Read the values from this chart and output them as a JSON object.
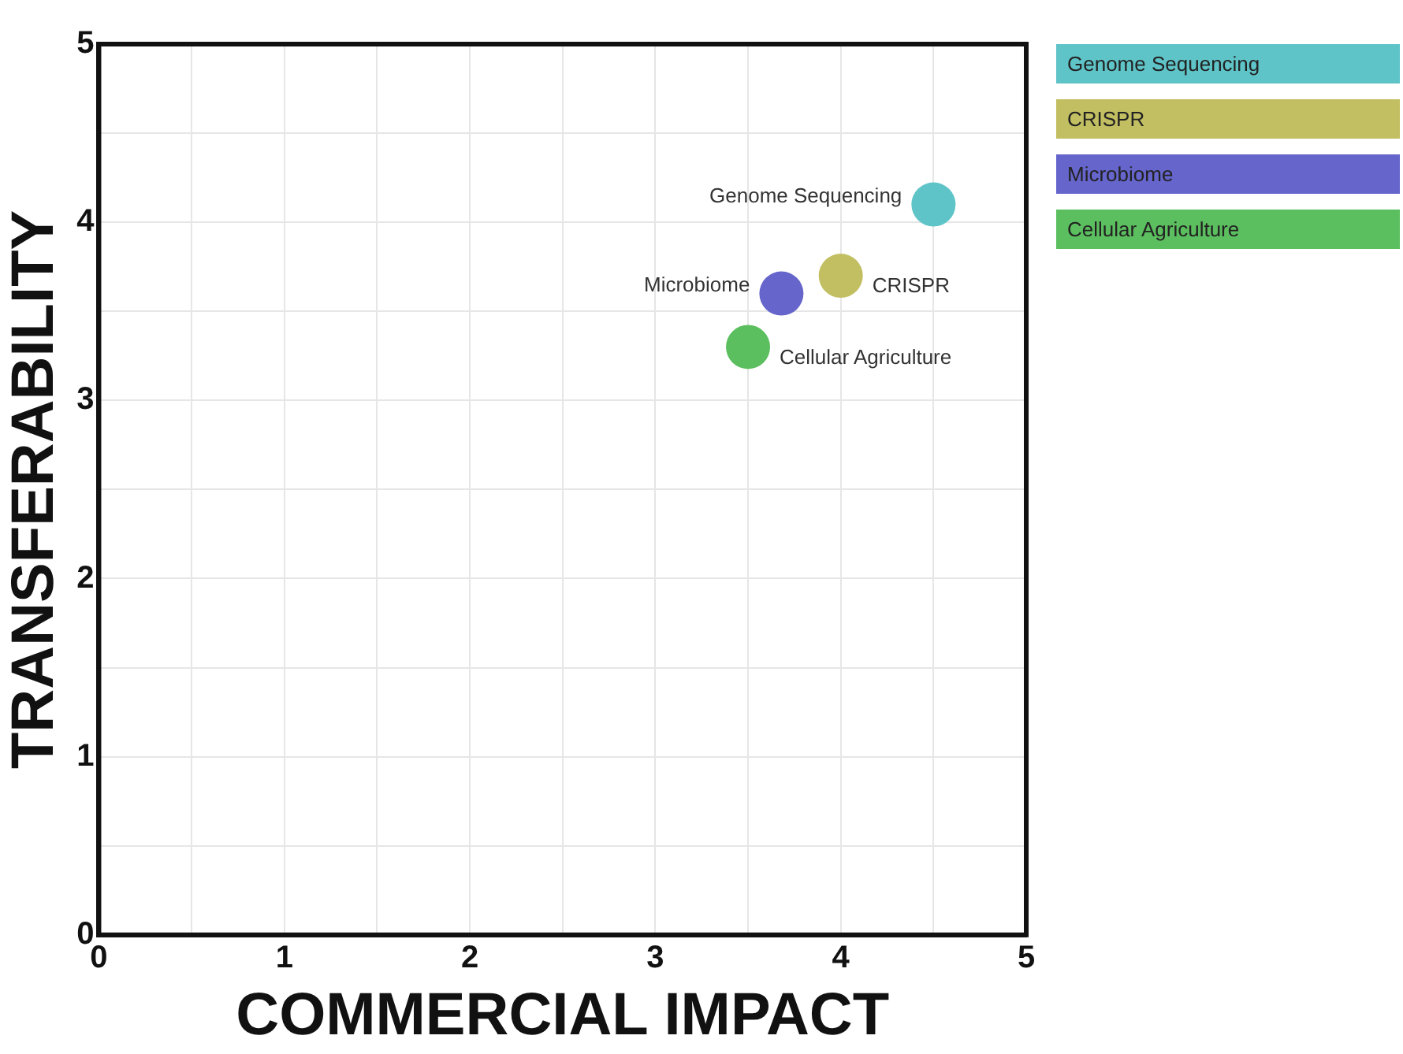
{
  "chart_data": {
    "type": "scatter",
    "xlabel": "COMMERCIAL IMPACT",
    "ylabel": "TRANSFERABILITY",
    "xlim": [
      0,
      5
    ],
    "ylim": [
      0,
      5
    ],
    "xticks": [
      0,
      {
        "value": 0.5,
        "label": null
      },
      1,
      {
        "value": 1.5,
        "label": null
      },
      2,
      {
        "value": 2.5,
        "label": null
      },
      3,
      {
        "value": 3.5,
        "label": null
      },
      4,
      {
        "value": 4.5,
        "label": null
      },
      5
    ],
    "yticks": [
      0,
      {
        "value": 0.5,
        "label": null
      },
      1,
      {
        "value": 1.5,
        "label": null
      },
      2,
      {
        "value": 2.5,
        "label": null
      },
      3,
      {
        "value": 3.5,
        "label": null
      },
      4,
      {
        "value": 4.5,
        "label": null
      },
      5
    ],
    "grid": true,
    "legend": "top right",
    "marker": "circle",
    "series": [
      {
        "name": "Genome Sequencing",
        "color": "#5fc4c8",
        "x": [
          4.5
        ],
        "values": [
          4.1
        ]
      },
      {
        "name": "CRISPR",
        "color": "#c2bf62",
        "x": [
          4.0
        ],
        "values": [
          3.7
        ]
      },
      {
        "name": "Microbiome",
        "color": "#6565cc",
        "x": [
          3.68
        ],
        "values": [
          3.6
        ]
      },
      {
        "name": "Cellular Agriculture",
        "color": "#5cbf5f",
        "x": [
          3.5
        ],
        "values": [
          3.3
        ]
      }
    ]
  }
}
